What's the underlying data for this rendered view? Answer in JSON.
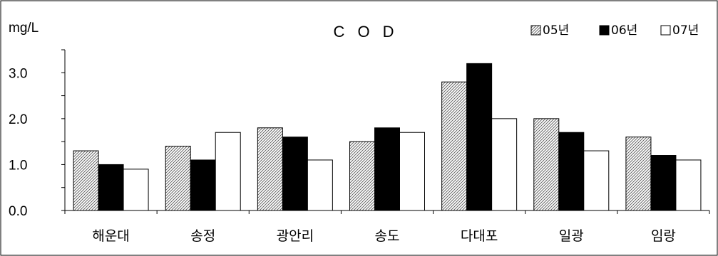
{
  "chart_data": {
    "type": "bar",
    "title": "C O D",
    "ylabel": "mg/L",
    "xlabel": "",
    "ylim": [
      0,
      3.5
    ],
    "yticks": [
      0.0,
      1.0,
      2.0,
      3.0
    ],
    "ytick_labels": [
      "0.0",
      "1.0",
      "2.0",
      "3.0"
    ],
    "legend_position": "top-right",
    "categories": [
      "해운대",
      "송정",
      "광안리",
      "송도",
      "다대포",
      "일광",
      "임랑"
    ],
    "series": [
      {
        "name": "05년",
        "values": [
          1.3,
          1.4,
          1.8,
          1.5,
          2.8,
          2.0,
          1.6
        ],
        "fill": "hatch"
      },
      {
        "name": "06년",
        "values": [
          1.0,
          1.1,
          1.6,
          1.8,
          3.2,
          1.7,
          1.2
        ],
        "fill": "#000000"
      },
      {
        "name": "07년",
        "values": [
          0.9,
          1.7,
          1.1,
          1.7,
          2.0,
          1.3,
          1.1
        ],
        "fill": "#ffffff"
      }
    ]
  }
}
